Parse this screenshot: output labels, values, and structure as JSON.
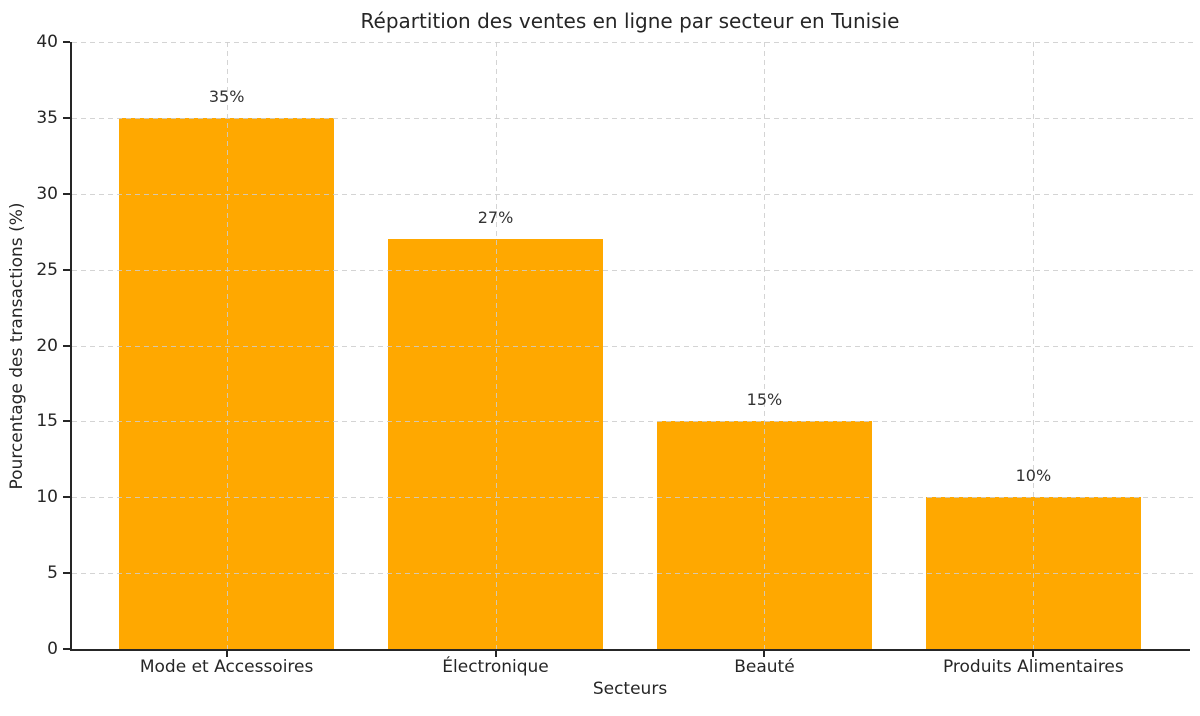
{
  "chart_data": {
    "type": "bar",
    "title": "Répartition des ventes en ligne par secteur en Tunisie",
    "xlabel": "Secteurs",
    "ylabel": "Pourcentage des transactions (%)",
    "categories": [
      "Mode et Accessoires",
      "Électronique",
      "Beauté",
      "Produits Alimentaires"
    ],
    "values": [
      35,
      27,
      15,
      10
    ],
    "bar_labels": [
      "35%",
      "27%",
      "15%",
      "10%"
    ],
    "ylim": [
      0,
      40
    ],
    "yticks": [
      0,
      5,
      10,
      15,
      20,
      25,
      30,
      35,
      40
    ],
    "bar_color": "#FFA800",
    "grid": "dashed",
    "grid_color": "#CDCDCD",
    "axis_color": "#262626",
    "background": "#FFFFFF",
    "legend_position": "none"
  }
}
